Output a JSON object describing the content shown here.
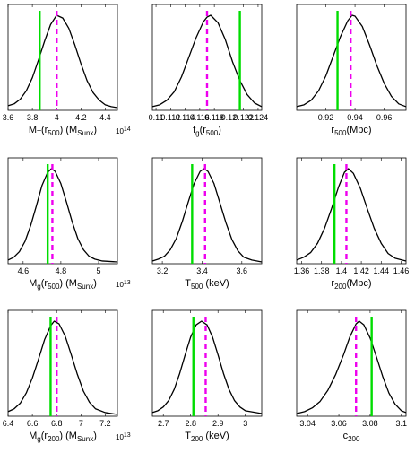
{
  "chart_data": [
    {
      "type": "line",
      "xlabel_parts": [
        [
          "M",
          "n"
        ],
        [
          "T",
          "s"
        ],
        [
          "(r",
          "n"
        ],
        [
          "500",
          "s"
        ],
        [
          ") (M",
          "n"
        ],
        [
          "Sunx",
          "s"
        ],
        [
          ")",
          "n"
        ]
      ],
      "scale": "10^14",
      "xlim": [
        3.6,
        4.5
      ],
      "xticks": [
        3.6,
        3.8,
        4,
        4.2,
        4.4
      ],
      "xticklabels": [
        "3.6",
        "3.8",
        "4",
        "4.2",
        "4.4"
      ],
      "green_x": 3.86,
      "magenta_x": 4.0,
      "curve": [
        [
          3.6,
          0.03
        ],
        [
          3.65,
          0.05
        ],
        [
          3.7,
          0.1
        ],
        [
          3.75,
          0.19
        ],
        [
          3.8,
          0.33
        ],
        [
          3.85,
          0.52
        ],
        [
          3.9,
          0.72
        ],
        [
          3.95,
          0.9
        ],
        [
          4.0,
          1.0
        ],
        [
          4.05,
          0.97
        ],
        [
          4.1,
          0.86
        ],
        [
          4.15,
          0.68
        ],
        [
          4.2,
          0.48
        ],
        [
          4.25,
          0.3
        ],
        [
          4.3,
          0.17
        ],
        [
          4.35,
          0.09
        ],
        [
          4.4,
          0.04
        ],
        [
          4.45,
          0.02
        ],
        [
          4.5,
          0.01
        ]
      ]
    },
    {
      "type": "line",
      "xlabel_parts": [
        [
          "f",
          "n"
        ],
        [
          "g",
          "s"
        ],
        [
          "(r",
          "n"
        ],
        [
          "500",
          "s"
        ],
        [
          ")",
          "n"
        ]
      ],
      "scale": "",
      "xlim": [
        0.1095,
        0.1245
      ],
      "xticks": [
        0.11,
        0.112,
        0.114,
        0.116,
        0.118,
        0.12,
        0.122,
        0.124
      ],
      "xticklabels": [
        "0.11",
        "0.112",
        "0.114",
        "0.116",
        "0.118",
        "0.12",
        "0.122",
        "0.124"
      ],
      "green_x": 0.1215,
      "magenta_x": 0.117,
      "curve": [
        [
          0.1095,
          0.02
        ],
        [
          0.1105,
          0.04
        ],
        [
          0.1115,
          0.09
        ],
        [
          0.1125,
          0.18
        ],
        [
          0.1135,
          0.34
        ],
        [
          0.1145,
          0.55
        ],
        [
          0.1155,
          0.76
        ],
        [
          0.1165,
          0.93
        ],
        [
          0.117,
          0.98
        ],
        [
          0.1175,
          1.0
        ],
        [
          0.1185,
          0.92
        ],
        [
          0.1195,
          0.74
        ],
        [
          0.1205,
          0.5
        ],
        [
          0.1215,
          0.3
        ],
        [
          0.1225,
          0.15
        ],
        [
          0.1235,
          0.06
        ],
        [
          0.1245,
          0.02
        ]
      ]
    },
    {
      "type": "line",
      "xlabel_parts": [
        [
          "r",
          "n"
        ],
        [
          "500",
          "s"
        ],
        [
          "(Mpc)",
          "n"
        ]
      ],
      "scale": "",
      "xlim": [
        0.9,
        0.975
      ],
      "xticks": [
        0.92,
        0.94,
        0.96
      ],
      "xticklabels": [
        "0.92",
        "0.94",
        "0.96"
      ],
      "green_x": 0.928,
      "magenta_x": 0.937,
      "curve": [
        [
          0.9,
          0.02
        ],
        [
          0.905,
          0.04
        ],
        [
          0.91,
          0.09
        ],
        [
          0.915,
          0.19
        ],
        [
          0.92,
          0.35
        ],
        [
          0.925,
          0.56
        ],
        [
          0.93,
          0.77
        ],
        [
          0.935,
          0.94
        ],
        [
          0.938,
          1.0
        ],
        [
          0.94,
          0.99
        ],
        [
          0.945,
          0.88
        ],
        [
          0.95,
          0.68
        ],
        [
          0.955,
          0.46
        ],
        [
          0.96,
          0.27
        ],
        [
          0.965,
          0.13
        ],
        [
          0.97,
          0.05
        ],
        [
          0.975,
          0.02
        ]
      ]
    },
    {
      "type": "line",
      "xlabel_parts": [
        [
          "M",
          "n"
        ],
        [
          "g",
          "s"
        ],
        [
          "(r",
          "n"
        ],
        [
          "500",
          "s"
        ],
        [
          ") (M",
          "n"
        ],
        [
          "Sunx",
          "s"
        ],
        [
          ")",
          "n"
        ]
      ],
      "scale": "10^13",
      "xlim": [
        4.52,
        5.1
      ],
      "xticks": [
        4.6,
        4.8,
        5
      ],
      "xticklabels": [
        "4.6",
        "4.8",
        "5"
      ],
      "green_x": 4.73,
      "magenta_x": 4.755,
      "curve": [
        [
          4.52,
          0.02
        ],
        [
          4.55,
          0.05
        ],
        [
          4.58,
          0.11
        ],
        [
          4.61,
          0.22
        ],
        [
          4.64,
          0.39
        ],
        [
          4.67,
          0.6
        ],
        [
          4.7,
          0.82
        ],
        [
          4.73,
          0.96
        ],
        [
          4.75,
          1.0
        ],
        [
          4.77,
          0.97
        ],
        [
          4.8,
          0.84
        ],
        [
          4.83,
          0.64
        ],
        [
          4.86,
          0.43
        ],
        [
          4.89,
          0.25
        ],
        [
          4.92,
          0.13
        ],
        [
          4.95,
          0.06
        ],
        [
          4.98,
          0.03
        ],
        [
          5.02,
          0.01
        ],
        [
          5.1,
          0.0
        ]
      ]
    },
    {
      "type": "line",
      "xlabel_parts": [
        [
          "T",
          "n"
        ],
        [
          "500",
          "s"
        ],
        [
          " (keV)",
          "n"
        ]
      ],
      "scale": "",
      "xlim": [
        3.15,
        3.7
      ],
      "xticks": [
        3.2,
        3.4,
        3.6
      ],
      "xticklabels": [
        "3.2",
        "3.4",
        "3.6"
      ],
      "green_x": 3.35,
      "magenta_x": 3.415,
      "curve": [
        [
          3.15,
          0.01
        ],
        [
          3.18,
          0.03
        ],
        [
          3.21,
          0.06
        ],
        [
          3.24,
          0.13
        ],
        [
          3.27,
          0.25
        ],
        [
          3.3,
          0.43
        ],
        [
          3.33,
          0.64
        ],
        [
          3.36,
          0.84
        ],
        [
          3.39,
          0.97
        ],
        [
          3.41,
          1.0
        ],
        [
          3.43,
          0.97
        ],
        [
          3.46,
          0.84
        ],
        [
          3.49,
          0.63
        ],
        [
          3.52,
          0.42
        ],
        [
          3.55,
          0.24
        ],
        [
          3.58,
          0.12
        ],
        [
          3.61,
          0.05
        ],
        [
          3.65,
          0.02
        ],
        [
          3.7,
          0.0
        ]
      ]
    },
    {
      "type": "line",
      "xlabel_parts": [
        [
          "r",
          "n"
        ],
        [
          "200",
          "s"
        ],
        [
          "(Mpc)",
          "n"
        ]
      ],
      "scale": "",
      "xlim": [
        1.355,
        1.465
      ],
      "xticks": [
        1.36,
        1.38,
        1.4,
        1.42,
        1.44,
        1.46
      ],
      "xticklabels": [
        "1.36",
        "1.38",
        "1.4",
        "1.42",
        "1.44",
        "1.46"
      ],
      "green_x": 1.393,
      "magenta_x": 1.405,
      "curve": [
        [
          1.355,
          0.02
        ],
        [
          1.362,
          0.05
        ],
        [
          1.369,
          0.1
        ],
        [
          1.376,
          0.2
        ],
        [
          1.383,
          0.36
        ],
        [
          1.39,
          0.57
        ],
        [
          1.397,
          0.8
        ],
        [
          1.403,
          0.96
        ],
        [
          1.407,
          1.0
        ],
        [
          1.412,
          0.95
        ],
        [
          1.419,
          0.79
        ],
        [
          1.426,
          0.57
        ],
        [
          1.433,
          0.36
        ],
        [
          1.44,
          0.2
        ],
        [
          1.447,
          0.09
        ],
        [
          1.454,
          0.04
        ],
        [
          1.465,
          0.01
        ]
      ]
    },
    {
      "type": "line",
      "xlabel_parts": [
        [
          "M",
          "n"
        ],
        [
          "g",
          "s"
        ],
        [
          "(r",
          "n"
        ],
        [
          "200",
          "s"
        ],
        [
          ") (M",
          "n"
        ],
        [
          "Sunx",
          "s"
        ],
        [
          ")",
          "n"
        ]
      ],
      "scale": "10^13",
      "xlim": [
        6.4,
        7.3
      ],
      "xticks": [
        6.4,
        6.6,
        6.8,
        7,
        7.2
      ],
      "xticklabels": [
        "6.4",
        "6.6",
        "6.8",
        "7",
        "7.2"
      ],
      "green_x": 6.75,
      "magenta_x": 6.8,
      "curve": [
        [
          6.4,
          0.03
        ],
        [
          6.45,
          0.06
        ],
        [
          6.5,
          0.12
        ],
        [
          6.55,
          0.23
        ],
        [
          6.6,
          0.39
        ],
        [
          6.65,
          0.59
        ],
        [
          6.7,
          0.8
        ],
        [
          6.75,
          0.95
        ],
        [
          6.78,
          1.0
        ],
        [
          6.82,
          0.97
        ],
        [
          6.87,
          0.84
        ],
        [
          6.92,
          0.64
        ],
        [
          6.97,
          0.43
        ],
        [
          7.02,
          0.25
        ],
        [
          7.07,
          0.13
        ],
        [
          7.12,
          0.06
        ],
        [
          7.2,
          0.02
        ],
        [
          7.3,
          0.0
        ]
      ]
    },
    {
      "type": "line",
      "xlabel_parts": [
        [
          "T",
          "n"
        ],
        [
          "200",
          "s"
        ],
        [
          " (keV)",
          "n"
        ]
      ],
      "scale": "",
      "xlim": [
        2.66,
        3.06
      ],
      "xticks": [
        2.7,
        2.8,
        2.9,
        3
      ],
      "xticklabels": [
        "2.7",
        "2.8",
        "2.9",
        "3"
      ],
      "green_x": 2.81,
      "magenta_x": 2.855,
      "curve": [
        [
          2.66,
          0.02
        ],
        [
          2.68,
          0.04
        ],
        [
          2.7,
          0.08
        ],
        [
          2.72,
          0.15
        ],
        [
          2.74,
          0.27
        ],
        [
          2.76,
          0.44
        ],
        [
          2.78,
          0.64
        ],
        [
          2.8,
          0.83
        ],
        [
          2.82,
          0.96
        ],
        [
          2.84,
          1.0
        ],
        [
          2.86,
          0.96
        ],
        [
          2.88,
          0.83
        ],
        [
          2.9,
          0.64
        ],
        [
          2.92,
          0.44
        ],
        [
          2.94,
          0.27
        ],
        [
          2.96,
          0.15
        ],
        [
          2.98,
          0.08
        ],
        [
          3.0,
          0.04
        ],
        [
          3.06,
          0.01
        ]
      ]
    },
    {
      "type": "line",
      "xlabel_parts": [
        [
          "c",
          "n"
        ],
        [
          "200",
          "s"
        ]
      ],
      "scale": "",
      "xlim": [
        3.033,
        3.103
      ],
      "xticks": [
        3.04,
        3.06,
        3.08,
        3.1
      ],
      "xticklabels": [
        "3.04",
        "3.06",
        "3.08",
        "3.1"
      ],
      "green_x": 3.081,
      "magenta_x": 3.071,
      "curve": [
        [
          3.033,
          0.01
        ],
        [
          3.038,
          0.03
        ],
        [
          3.043,
          0.07
        ],
        [
          3.048,
          0.14
        ],
        [
          3.053,
          0.26
        ],
        [
          3.058,
          0.43
        ],
        [
          3.063,
          0.64
        ],
        [
          3.067,
          0.83
        ],
        [
          3.071,
          0.97
        ],
        [
          3.073,
          1.0
        ],
        [
          3.076,
          0.96
        ],
        [
          3.08,
          0.82
        ],
        [
          3.084,
          0.62
        ],
        [
          3.088,
          0.41
        ],
        [
          3.092,
          0.23
        ],
        [
          3.096,
          0.11
        ],
        [
          3.1,
          0.04
        ],
        [
          3.103,
          0.02
        ]
      ]
    }
  ],
  "colors": {
    "curve": "#000000",
    "green_line": "#00dd00",
    "magenta_line": "#ee00ee",
    "axes": "#000000"
  }
}
